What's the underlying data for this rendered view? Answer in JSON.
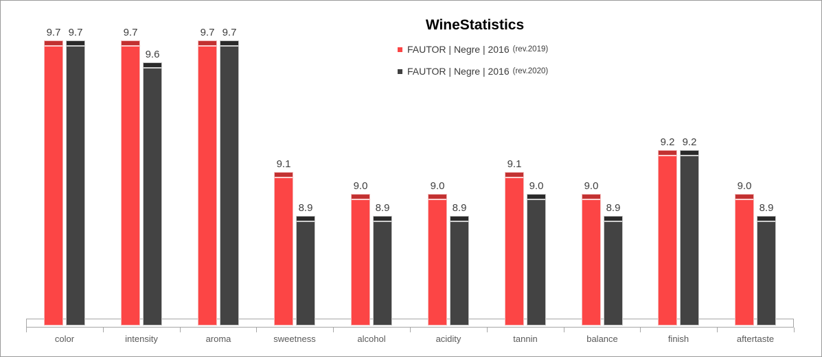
{
  "title": {
    "text": "WineStatistics"
  },
  "legend": [
    {
      "label": "FAUTOR | Negre | 2016",
      "suffix": "(rev.2019)",
      "marker_color": "#fb4545"
    },
    {
      "label": "FAUTOR | Negre | 2016",
      "suffix": "(rev.2020)",
      "marker_color": "#404040"
    }
  ],
  "chart_data": {
    "type": "bar",
    "title": "WineStatistics",
    "categories": [
      "color",
      "intensity",
      "aroma",
      "sweetness",
      "alcohol",
      "acidity",
      "tannin",
      "balance",
      "finish",
      "aftertaste"
    ],
    "series": [
      {
        "key": "rev2019",
        "name": "FAUTOR | Negre | 2016 (rev.2019)",
        "color": "#fc4545",
        "cap_color": "#c23131",
        "edge_color": "#f4bcbc",
        "values": [
          9.7,
          9.7,
          9.7,
          9.1,
          9.0,
          9.0,
          9.1,
          9.0,
          9.2,
          9.0
        ]
      },
      {
        "key": "rev2020",
        "name": "FAUTOR | Negre | 2016 (rev.2020)",
        "color": "#434343",
        "cap_color": "#2a2a2a",
        "edge_color": "#c8c8c8",
        "values": [
          9.7,
          9.6,
          9.7,
          8.9,
          8.9,
          8.9,
          9.0,
          8.9,
          9.2,
          8.9
        ]
      }
    ],
    "data_labels_shown": true,
    "value_format": "one_decimal",
    "ylim": [
      8.4,
      9.8
    ],
    "grid": false,
    "value_axis_visible": false,
    "legend_position": "top-center",
    "axis_line_color": "#a6a6a6",
    "category_label_color": "#595959",
    "data_label_color": "#3d3d3d"
  }
}
